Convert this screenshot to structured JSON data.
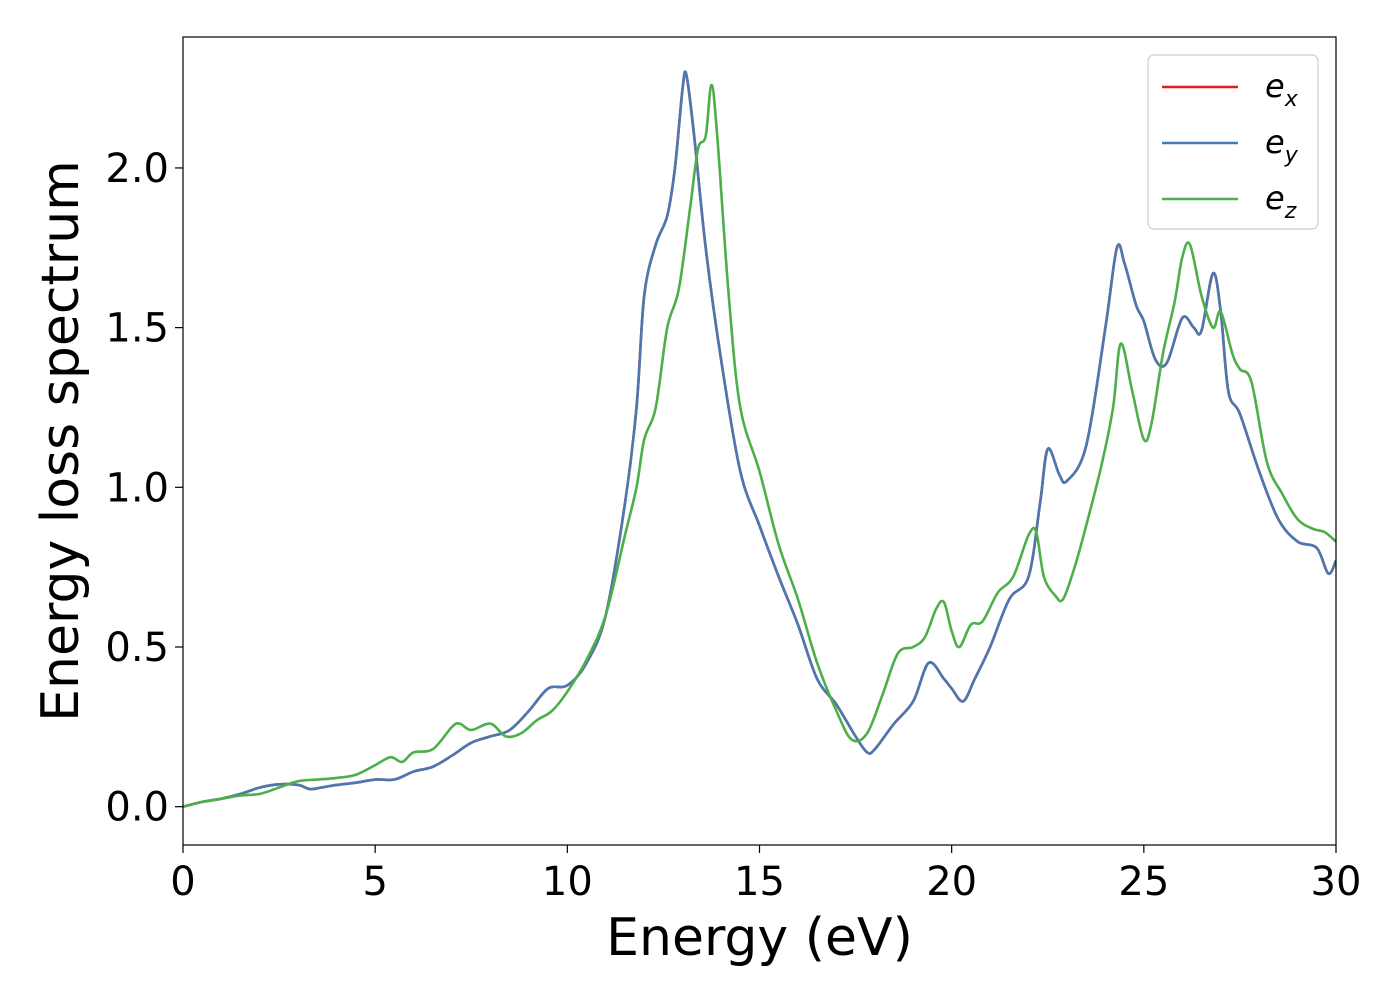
{
  "chart_data": {
    "type": "line",
    "title": "",
    "xlabel": "Energy (eV)",
    "ylabel": "Energy loss spectrum",
    "xlim": [
      0,
      30
    ],
    "ylim": [
      -0.12,
      2.41
    ],
    "xticks": [
      0,
      5,
      10,
      15,
      20,
      25,
      30
    ],
    "xtick_labels": [
      "0",
      "5",
      "10",
      "15",
      "20",
      "25",
      "30"
    ],
    "yticks": [
      0.0,
      0.5,
      1.0,
      1.5,
      2.0
    ],
    "ytick_labels": [
      "0.0",
      "0.5",
      "1.0",
      "1.5",
      "2.0"
    ],
    "grid": false,
    "legend_position": "top-right",
    "series": [
      {
        "name": "e_x",
        "label_main": "e",
        "label_sub": "x",
        "color": "#e41a1c",
        "x": [
          0,
          0.5,
          1,
          1.5,
          2,
          2.5,
          3,
          3.3,
          3.6,
          4,
          4.5,
          5,
          5.5,
          6,
          6.5,
          7,
          7.5,
          8,
          8.5,
          9,
          9.5,
          10,
          10.5,
          11,
          11.5,
          11.8,
          12,
          12.3,
          12.6,
          12.8,
          13,
          13.1,
          13.3,
          13.6,
          14,
          14.5,
          15,
          15.5,
          16,
          16.5,
          17,
          17.5,
          17.8,
          18,
          18.5,
          19,
          19.4,
          19.8,
          20,
          20.3,
          20.6,
          21,
          21.5,
          22,
          22.3,
          22.5,
          22.8,
          23,
          23.5,
          24,
          24.3,
          24.5,
          24.8,
          25,
          25.3,
          25.6,
          26,
          26.3,
          26.5,
          26.8,
          27,
          27.2,
          27.5,
          28,
          28.5,
          29,
          29.5,
          29.8,
          30
        ],
        "y": [
          0.0,
          0.015,
          0.025,
          0.04,
          0.06,
          0.07,
          0.068,
          0.055,
          0.06,
          0.068,
          0.075,
          0.085,
          0.085,
          0.11,
          0.125,
          0.16,
          0.2,
          0.22,
          0.24,
          0.3,
          0.37,
          0.38,
          0.45,
          0.6,
          0.95,
          1.25,
          1.6,
          1.76,
          1.85,
          2.0,
          2.25,
          2.29,
          2.1,
          1.75,
          1.4,
          1.05,
          0.88,
          0.72,
          0.57,
          0.4,
          0.32,
          0.22,
          0.17,
          0.18,
          0.26,
          0.33,
          0.45,
          0.4,
          0.37,
          0.33,
          0.4,
          0.5,
          0.65,
          0.72,
          0.95,
          1.12,
          1.04,
          1.02,
          1.13,
          1.5,
          1.75,
          1.7,
          1.57,
          1.52,
          1.4,
          1.39,
          1.53,
          1.5,
          1.49,
          1.67,
          1.55,
          1.3,
          1.23,
          1.05,
          0.9,
          0.83,
          0.81,
          0.73,
          0.77
        ]
      },
      {
        "name": "e_y",
        "label_main": "e",
        "label_sub": "y",
        "color": "#4a78b0",
        "x": [
          0,
          0.5,
          1,
          1.5,
          2,
          2.5,
          3,
          3.3,
          3.6,
          4,
          4.5,
          5,
          5.5,
          6,
          6.5,
          7,
          7.5,
          8,
          8.5,
          9,
          9.5,
          10,
          10.5,
          11,
          11.5,
          11.8,
          12,
          12.3,
          12.6,
          12.8,
          13,
          13.1,
          13.3,
          13.6,
          14,
          14.5,
          15,
          15.5,
          16,
          16.5,
          17,
          17.5,
          17.8,
          18,
          18.5,
          19,
          19.4,
          19.8,
          20,
          20.3,
          20.6,
          21,
          21.5,
          22,
          22.3,
          22.5,
          22.8,
          23,
          23.5,
          24,
          24.3,
          24.5,
          24.8,
          25,
          25.3,
          25.6,
          26,
          26.3,
          26.5,
          26.8,
          27,
          27.2,
          27.5,
          28,
          28.5,
          29,
          29.5,
          29.8,
          30
        ],
        "y": [
          0.0,
          0.015,
          0.025,
          0.04,
          0.06,
          0.07,
          0.068,
          0.055,
          0.06,
          0.068,
          0.075,
          0.085,
          0.085,
          0.11,
          0.125,
          0.16,
          0.2,
          0.22,
          0.24,
          0.3,
          0.37,
          0.38,
          0.45,
          0.6,
          0.95,
          1.25,
          1.6,
          1.76,
          1.85,
          2.0,
          2.25,
          2.29,
          2.1,
          1.75,
          1.4,
          1.05,
          0.88,
          0.72,
          0.57,
          0.4,
          0.32,
          0.22,
          0.17,
          0.18,
          0.26,
          0.33,
          0.45,
          0.4,
          0.37,
          0.33,
          0.4,
          0.5,
          0.65,
          0.72,
          0.95,
          1.12,
          1.04,
          1.02,
          1.13,
          1.5,
          1.75,
          1.7,
          1.57,
          1.52,
          1.4,
          1.39,
          1.53,
          1.5,
          1.49,
          1.67,
          1.55,
          1.3,
          1.23,
          1.05,
          0.9,
          0.83,
          0.81,
          0.73,
          0.77
        ]
      },
      {
        "name": "e_z",
        "label_main": "e",
        "label_sub": "z",
        "color": "#4daf4a",
        "x": [
          0,
          0.5,
          1,
          1.5,
          2,
          2.5,
          3,
          3.5,
          4,
          4.5,
          5,
          5.4,
          5.7,
          6,
          6.5,
          7,
          7.2,
          7.5,
          8,
          8.4,
          8.8,
          9.2,
          9.6,
          10,
          10.5,
          11,
          11.5,
          11.8,
          12,
          12.3,
          12.6,
          12.9,
          13.2,
          13.4,
          13.6,
          13.75,
          13.9,
          14.2,
          14.5,
          15,
          15.5,
          16,
          16.5,
          17,
          17.4,
          17.8,
          18.2,
          18.6,
          19,
          19.3,
          19.6,
          19.8,
          20,
          20.2,
          20.5,
          20.8,
          21.2,
          21.6,
          22,
          22.2,
          22.4,
          22.7,
          22.9,
          23.2,
          23.5,
          23.9,
          24.2,
          24.4,
          24.7,
          25,
          25.2,
          25.5,
          25.8,
          26,
          26.2,
          26.5,
          26.8,
          27,
          27.3,
          27.5,
          27.8,
          28.2,
          28.6,
          29,
          29.4,
          29.7,
          30
        ],
        "y": [
          0.0,
          0.015,
          0.025,
          0.035,
          0.04,
          0.06,
          0.08,
          0.085,
          0.09,
          0.1,
          0.13,
          0.155,
          0.14,
          0.17,
          0.18,
          0.25,
          0.26,
          0.24,
          0.26,
          0.22,
          0.23,
          0.27,
          0.3,
          0.36,
          0.46,
          0.6,
          0.85,
          1.0,
          1.15,
          1.25,
          1.5,
          1.62,
          1.88,
          2.06,
          2.1,
          2.26,
          2.1,
          1.6,
          1.25,
          1.05,
          0.82,
          0.65,
          0.45,
          0.3,
          0.21,
          0.23,
          0.35,
          0.48,
          0.5,
          0.53,
          0.62,
          0.64,
          0.55,
          0.5,
          0.57,
          0.58,
          0.67,
          0.72,
          0.85,
          0.86,
          0.72,
          0.66,
          0.65,
          0.75,
          0.88,
          1.07,
          1.25,
          1.45,
          1.3,
          1.15,
          1.2,
          1.42,
          1.58,
          1.72,
          1.76,
          1.6,
          1.5,
          1.55,
          1.42,
          1.37,
          1.33,
          1.08,
          0.98,
          0.9,
          0.87,
          0.86,
          0.83
        ]
      }
    ]
  }
}
